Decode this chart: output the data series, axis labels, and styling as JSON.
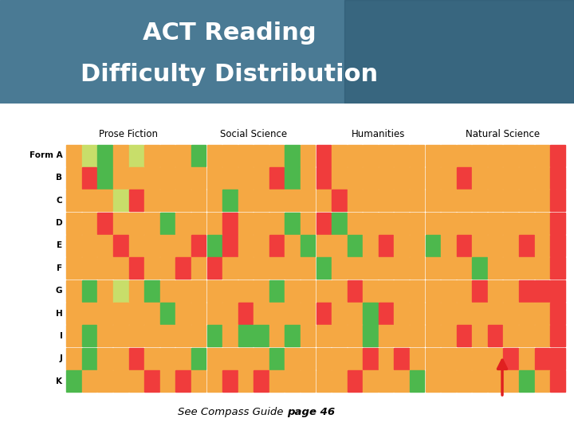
{
  "title_line1": "ACT Reading",
  "title_line2": "Difficulty Distribution",
  "subtitle_normal": "See Compass Guide ",
  "subtitle_bold": "page 46",
  "header_bg_color": "#4a7a94",
  "header_dark_color": "#2d5a72",
  "rows": [
    "Form A",
    "B",
    "C",
    "D",
    "E",
    "F",
    "G",
    "H",
    "I",
    "J",
    "K"
  ],
  "sections": [
    "Prose Fiction",
    "Social Science",
    "Humanities",
    "Natural Science"
  ],
  "cols_per_section": 8,
  "color_map": [
    "#4db84d",
    "#c8de6a",
    "#f5a843",
    "#f03c3c"
  ],
  "grid_data": {
    "Prose Fiction": [
      [
        2,
        1,
        0,
        2,
        1,
        2,
        2,
        2
      ],
      [
        2,
        3,
        0,
        2,
        2,
        2,
        2,
        2
      ],
      [
        2,
        2,
        2,
        1,
        3,
        2,
        2,
        2
      ],
      [
        2,
        2,
        3,
        2,
        2,
        2,
        0,
        2
      ],
      [
        2,
        2,
        2,
        3,
        2,
        2,
        2,
        2
      ],
      [
        2,
        2,
        2,
        2,
        3,
        2,
        2,
        3
      ],
      [
        2,
        0,
        2,
        1,
        2,
        0,
        2,
        2
      ],
      [
        2,
        2,
        2,
        2,
        2,
        2,
        0,
        2
      ],
      [
        2,
        0,
        2,
        2,
        2,
        2,
        2,
        2
      ],
      [
        2,
        0,
        2,
        2,
        3,
        2,
        2,
        2
      ],
      [
        0,
        2,
        2,
        2,
        2,
        3,
        2,
        3
      ]
    ],
    "Social Science": [
      [
        0,
        2,
        2,
        2,
        2,
        2,
        0,
        2
      ],
      [
        2,
        2,
        2,
        2,
        2,
        3,
        0,
        2
      ],
      [
        2,
        2,
        0,
        2,
        2,
        2,
        2,
        2
      ],
      [
        2,
        2,
        3,
        2,
        2,
        2,
        0,
        2
      ],
      [
        3,
        0,
        3,
        2,
        2,
        3,
        2,
        0
      ],
      [
        2,
        3,
        2,
        2,
        2,
        2,
        2,
        2
      ],
      [
        2,
        2,
        2,
        2,
        2,
        0,
        2,
        2
      ],
      [
        2,
        2,
        2,
        3,
        2,
        2,
        2,
        2
      ],
      [
        2,
        0,
        2,
        0,
        0,
        2,
        0,
        2
      ],
      [
        0,
        2,
        2,
        2,
        2,
        0,
        2,
        2
      ],
      [
        2,
        2,
        3,
        2,
        3,
        2,
        2,
        2
      ]
    ],
    "Humanities": [
      [
        3,
        2,
        2,
        2,
        2,
        2,
        2,
        2
      ],
      [
        3,
        2,
        2,
        2,
        2,
        2,
        2,
        2
      ],
      [
        2,
        3,
        2,
        2,
        2,
        2,
        2,
        2
      ],
      [
        3,
        0,
        2,
        2,
        2,
        2,
        2,
        2
      ],
      [
        2,
        2,
        0,
        2,
        3,
        2,
        2,
        0
      ],
      [
        0,
        2,
        2,
        2,
        2,
        2,
        2,
        2
      ],
      [
        2,
        2,
        3,
        2,
        2,
        2,
        2,
        2
      ],
      [
        3,
        2,
        2,
        0,
        3,
        2,
        2,
        2
      ],
      [
        2,
        2,
        2,
        0,
        2,
        2,
        2,
        2
      ],
      [
        2,
        2,
        2,
        3,
        2,
        3,
        2,
        2
      ],
      [
        2,
        2,
        3,
        2,
        2,
        2,
        0,
        2
      ]
    ],
    "Natural Science": [
      [
        2,
        2,
        2,
        2,
        2,
        2,
        2,
        3
      ],
      [
        2,
        3,
        2,
        2,
        2,
        2,
        2,
        3
      ],
      [
        2,
        2,
        2,
        2,
        2,
        2,
        2,
        3
      ],
      [
        2,
        2,
        2,
        2,
        2,
        2,
        2,
        3
      ],
      [
        2,
        3,
        2,
        2,
        2,
        3,
        2,
        3
      ],
      [
        2,
        2,
        0,
        2,
        2,
        2,
        2,
        3
      ],
      [
        2,
        2,
        3,
        2,
        2,
        3,
        3,
        3
      ],
      [
        2,
        2,
        2,
        2,
        2,
        2,
        2,
        3
      ],
      [
        2,
        3,
        2,
        3,
        2,
        2,
        2,
        3
      ],
      [
        2,
        2,
        2,
        2,
        3,
        2,
        3,
        3
      ],
      [
        2,
        2,
        2,
        2,
        2,
        0,
        2,
        3
      ]
    ]
  },
  "arrow_color": "#e02020",
  "fig_width": 7.2,
  "fig_height": 5.4
}
